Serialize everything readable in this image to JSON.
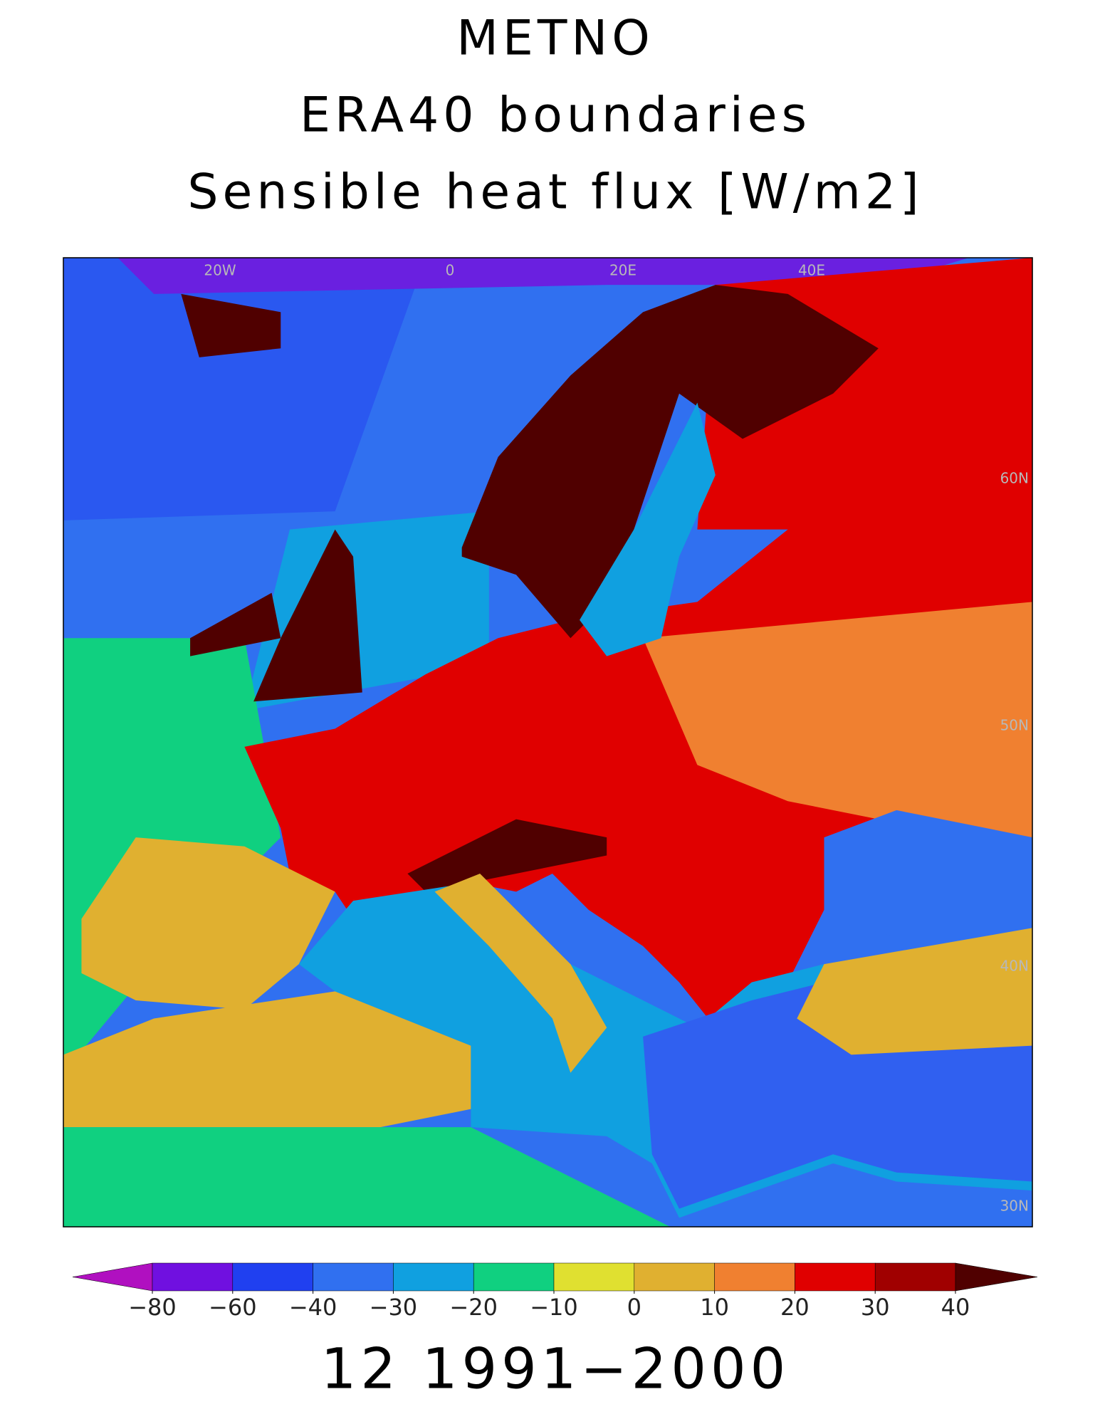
{
  "title": [
    "METNO",
    "ERA40 boundaries",
    "Sensible heat flux [W/m2]"
  ],
  "map": {
    "grid_labels": [
      "20W",
      "0",
      "20E",
      "40E",
      "60N",
      "50N",
      "40N",
      "30N"
    ]
  },
  "colorbar": {
    "colors": [
      "#b010c0",
      "#7010e0",
      "#2040f0",
      "#3070f0",
      "#10a0e0",
      "#10d080",
      "#e0e030",
      "#e0b030",
      "#f08030",
      "#e00000",
      "#a00000",
      "#500000"
    ],
    "ticks": [
      {
        "value": -80,
        "label": "−80"
      },
      {
        "value": -60,
        "label": "−60"
      },
      {
        "value": -40,
        "label": "−40"
      },
      {
        "value": -30,
        "label": "−30"
      },
      {
        "value": -20,
        "label": "−20"
      },
      {
        "value": -10,
        "label": "−10"
      },
      0,
      10,
      20,
      30,
      40
    ]
  },
  "period": "12 1991−2000"
}
